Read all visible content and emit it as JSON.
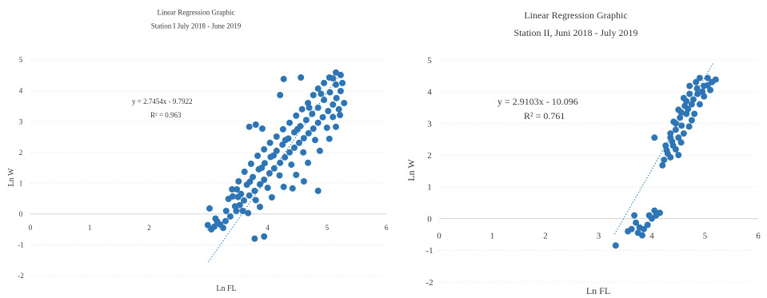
{
  "chart_data": [
    {
      "type": "scatter",
      "title": "Linear Regression Graphic",
      "subtitle": "Station I July 2018 - June 2019",
      "xlabel": "Ln FL",
      "ylabel": "Ln W",
      "xlim": [
        0,
        6
      ],
      "ylim": [
        -2,
        5
      ],
      "xticks": [
        0,
        1,
        2,
        3,
        4,
        5,
        6
      ],
      "yticks": [
        -2,
        -1,
        0,
        1,
        2,
        3,
        4,
        5
      ],
      "grid": true,
      "point_color": "#2e75b6",
      "grid_color": "#ececec",
      "axis_color": "#d4d4d4",
      "points": [
        [
          2.99,
          -0.36
        ],
        [
          3.1,
          -0.41
        ],
        [
          3.2,
          -0.34
        ],
        [
          3.29,
          -0.23
        ],
        [
          3.37,
          -0.08
        ],
        [
          3.47,
          0.1
        ],
        [
          3.53,
          0.29
        ],
        [
          3.41,
          0.57
        ],
        [
          3.48,
          0.8
        ],
        [
          3.6,
          0.44
        ],
        [
          3.69,
          0.6
        ],
        [
          3.78,
          0.75
        ],
        [
          3.87,
          0.96
        ],
        [
          3.94,
          1.11
        ],
        [
          4.03,
          1.32
        ],
        [
          4.11,
          1.48
        ],
        [
          4.21,
          1.66
        ],
        [
          4.29,
          1.84
        ],
        [
          4.37,
          2.0
        ],
        [
          4.45,
          2.15
        ],
        [
          4.53,
          2.31
        ],
        [
          4.61,
          2.46
        ],
        [
          4.69,
          2.62
        ],
        [
          4.77,
          2.77
        ],
        [
          4.85,
          2.96
        ],
        [
          4.93,
          3.14
        ],
        [
          5.02,
          3.34
        ],
        [
          5.1,
          3.55
        ],
        [
          5.16,
          3.76
        ],
        [
          5.23,
          3.99
        ],
        [
          5.26,
          4.25
        ],
        [
          5.23,
          4.51
        ],
        [
          5.15,
          4.59
        ],
        [
          5.04,
          4.43
        ],
        [
          4.95,
          4.25
        ],
        [
          4.85,
          4.07
        ],
        [
          4.77,
          3.86
        ],
        [
          4.68,
          3.6
        ],
        [
          4.58,
          3.4
        ],
        [
          4.48,
          3.19
        ],
        [
          4.37,
          2.96
        ],
        [
          4.26,
          2.75
        ],
        [
          4.15,
          2.51
        ],
        [
          4.04,
          2.31
        ],
        [
          3.94,
          2.1
        ],
        [
          3.83,
          1.89
        ],
        [
          3.72,
          1.63
        ],
        [
          3.61,
          1.37
        ],
        [
          3.51,
          1.06
        ],
        [
          3.4,
          0.8
        ],
        [
          3.34,
          0.49
        ],
        [
          3.67,
          0.03
        ],
        [
          3.87,
          0.23
        ],
        [
          4.07,
          0.54
        ],
        [
          4.27,
          0.88
        ],
        [
          4.48,
          1.27
        ],
        [
          4.68,
          1.66
        ],
        [
          4.88,
          2.05
        ],
        [
          5.04,
          2.44
        ],
        [
          5.15,
          2.83
        ],
        [
          5.22,
          3.21
        ],
        [
          5.29,
          3.6
        ],
        [
          3.05,
          -0.5
        ],
        [
          3.15,
          -0.25
        ],
        [
          3.25,
          -0.45
        ],
        [
          3.45,
          0.25
        ],
        [
          3.55,
          0.65
        ],
        [
          3.65,
          0.95
        ],
        [
          3.75,
          1.2
        ],
        [
          3.85,
          1.45
        ],
        [
          3.95,
          1.65
        ],
        [
          4.05,
          1.85
        ],
        [
          4.15,
          2.05
        ],
        [
          4.25,
          2.25
        ],
        [
          4.35,
          2.45
        ],
        [
          4.45,
          2.65
        ],
        [
          4.55,
          2.85
        ],
        [
          4.65,
          3.05
        ],
        [
          4.75,
          3.25
        ],
        [
          4.85,
          3.45
        ],
        [
          4.95,
          3.7
        ],
        [
          5.05,
          3.95
        ],
        [
          5.15,
          4.2
        ],
        [
          5.1,
          4.4
        ],
        [
          4.9,
          3.9
        ],
        [
          4.7,
          3.45
        ],
        [
          4.5,
          2.75
        ],
        [
          4.3,
          2.4
        ],
        [
          4.1,
          1.9
        ],
        [
          3.9,
          1.5
        ],
        [
          3.7,
          1.05
        ],
        [
          3.5,
          0.55
        ],
        [
          3.3,
          0.1
        ],
        [
          3.12,
          -0.15
        ],
        [
          3.58,
          0.1
        ],
        [
          3.8,
          0.45
        ],
        [
          4.0,
          0.85
        ],
        [
          4.2,
          1.25
        ],
        [
          4.4,
          1.6
        ],
        [
          4.6,
          2.0
        ],
        [
          4.8,
          2.4
        ],
        [
          5.0,
          2.8
        ],
        [
          5.1,
          3.15
        ],
        [
          5.2,
          3.4
        ],
        [
          4.27,
          4.38
        ],
        [
          4.56,
          4.43
        ],
        [
          4.21,
          3.86
        ],
        [
          3.8,
          2.9
        ],
        [
          3.91,
          2.77
        ],
        [
          3.69,
          2.83
        ],
        [
          4.42,
          0.83
        ],
        [
          4.85,
          0.75
        ],
        [
          4.61,
          1.06
        ],
        [
          3.94,
          -0.73
        ],
        [
          3.78,
          -0.8
        ],
        [
          3.02,
          0.18
        ]
      ],
      "trendline": {
        "slope": 2.7454,
        "intercept": -9.7922,
        "x_range": [
          3.0,
          5.25
        ],
        "equation": "y = 2.7454x - 9.7922",
        "r_squared": "R² = 0.963"
      }
    },
    {
      "type": "scatter",
      "title": "Linear Regression Graphic",
      "subtitle": "Station II, Juni 2018 - July 2019",
      "xlabel": "Ln FL",
      "ylabel": "Ln W",
      "xlim": [
        0,
        6
      ],
      "ylim": [
        -2,
        5
      ],
      "xticks": [
        0,
        1,
        2,
        3,
        4,
        5,
        6
      ],
      "yticks": [
        -2,
        -1,
        0,
        1,
        2,
        3,
        4,
        5
      ],
      "grid": true,
      "point_color": "#2e75b6",
      "grid_color": "#ececec",
      "axis_color": "#d4d4d4",
      "points": [
        [
          4.2,
          1.68
        ],
        [
          4.23,
          1.85
        ],
        [
          4.3,
          2.05
        ],
        [
          4.26,
          2.3
        ],
        [
          4.38,
          2.43
        ],
        [
          4.35,
          2.68
        ],
        [
          4.45,
          2.8
        ],
        [
          4.41,
          3.05
        ],
        [
          4.53,
          3.18
        ],
        [
          4.5,
          3.43
        ],
        [
          4.62,
          3.55
        ],
        [
          4.6,
          3.8
        ],
        [
          4.71,
          3.93
        ],
        [
          4.71,
          4.18
        ],
        [
          4.83,
          4.3
        ],
        [
          4.9,
          4.43
        ],
        [
          5.05,
          4.43
        ],
        [
          5.13,
          4.3
        ],
        [
          5.2,
          4.38
        ],
        [
          4.98,
          4.18
        ],
        [
          4.86,
          3.93
        ],
        [
          4.75,
          3.6
        ],
        [
          4.65,
          3.3
        ],
        [
          4.56,
          2.93
        ],
        [
          4.5,
          2.55
        ],
        [
          4.45,
          2.18
        ],
        [
          4.35,
          1.93
        ],
        [
          4.6,
          2.68
        ],
        [
          4.8,
          3.3
        ],
        [
          4.98,
          3.85
        ],
        [
          5.1,
          4.05
        ],
        [
          4.4,
          2.3
        ],
        [
          4.5,
          2.0
        ],
        [
          4.55,
          2.4
        ],
        [
          4.7,
          2.9
        ],
        [
          4.75,
          3.1
        ],
        [
          4.9,
          3.6
        ],
        [
          4.95,
          4.0
        ],
        [
          5.05,
          4.2
        ],
        [
          4.65,
          3.7
        ],
        [
          4.55,
          3.35
        ],
        [
          4.45,
          3.0
        ],
        [
          4.35,
          2.55
        ],
        [
          4.28,
          2.15
        ],
        [
          4.85,
          4.1
        ],
        [
          4.78,
          3.75
        ],
        [
          4.68,
          3.45
        ],
        [
          4.05,
          2.55
        ],
        [
          3.67,
          0.1
        ],
        [
          3.7,
          -0.13
        ],
        [
          3.62,
          -0.33
        ],
        [
          3.74,
          -0.45
        ],
        [
          3.85,
          -0.33
        ],
        [
          3.92,
          -0.2
        ],
        [
          4.0,
          0.0
        ],
        [
          4.08,
          0.1
        ],
        [
          4.15,
          0.18
        ],
        [
          4.05,
          0.25
        ],
        [
          3.95,
          0.1
        ],
        [
          3.82,
          -0.53
        ],
        [
          3.55,
          -0.4
        ],
        [
          3.77,
          -0.28
        ],
        [
          3.32,
          -0.85
        ]
      ],
      "trendline": {
        "slope": 2.9103,
        "intercept": -10.096,
        "x_range": [
          3.3,
          5.15
        ],
        "equation": "y = 2.9103x - 10.096",
        "r_squared": "R² = 0.761"
      }
    }
  ]
}
